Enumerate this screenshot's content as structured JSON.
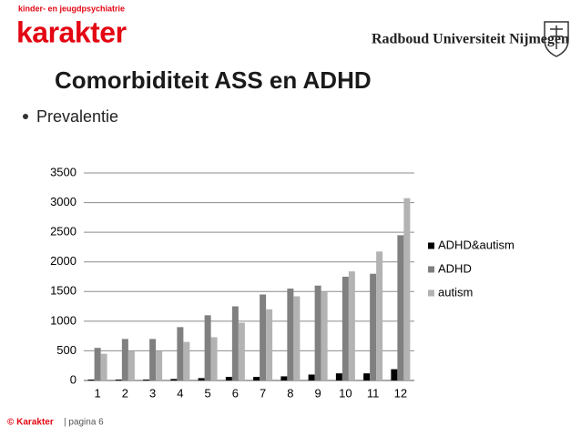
{
  "header": {
    "tagline": "kinder- en jeugdpsychiatrie",
    "brand": "karakter",
    "university": "Radboud Universiteit Nijmegen"
  },
  "title": "Comorbiditeit ASS en ADHD",
  "bullets": [
    "Prevalentie"
  ],
  "chart_data": {
    "type": "bar",
    "categories": [
      "1",
      "2",
      "3",
      "4",
      "5",
      "6",
      "7",
      "8",
      "9",
      "10",
      "11",
      "12"
    ],
    "series": [
      {
        "name": "ADHD&autism",
        "color": "#000000",
        "values": [
          15,
          15,
          15,
          25,
          40,
          60,
          60,
          70,
          100,
          120,
          120,
          190
        ]
      },
      {
        "name": "ADHD",
        "color": "#808080",
        "values": [
          550,
          700,
          700,
          900,
          1100,
          1250,
          1450,
          1550,
          1600,
          1750,
          1800,
          2450
        ]
      },
      {
        "name": "autism",
        "color": "#b3b3b3",
        "values": [
          450,
          500,
          500,
          650,
          730,
          975,
          1200,
          1420,
          1500,
          1840,
          2175,
          3075
        ]
      }
    ],
    "ylim": [
      0,
      3500
    ],
    "yticks": [
      0,
      500,
      1000,
      1500,
      2000,
      2500,
      3000,
      3500
    ],
    "grid": true,
    "legend": "right"
  },
  "footer": {
    "brand": "© Karakter",
    "page": "| pagina 6"
  }
}
